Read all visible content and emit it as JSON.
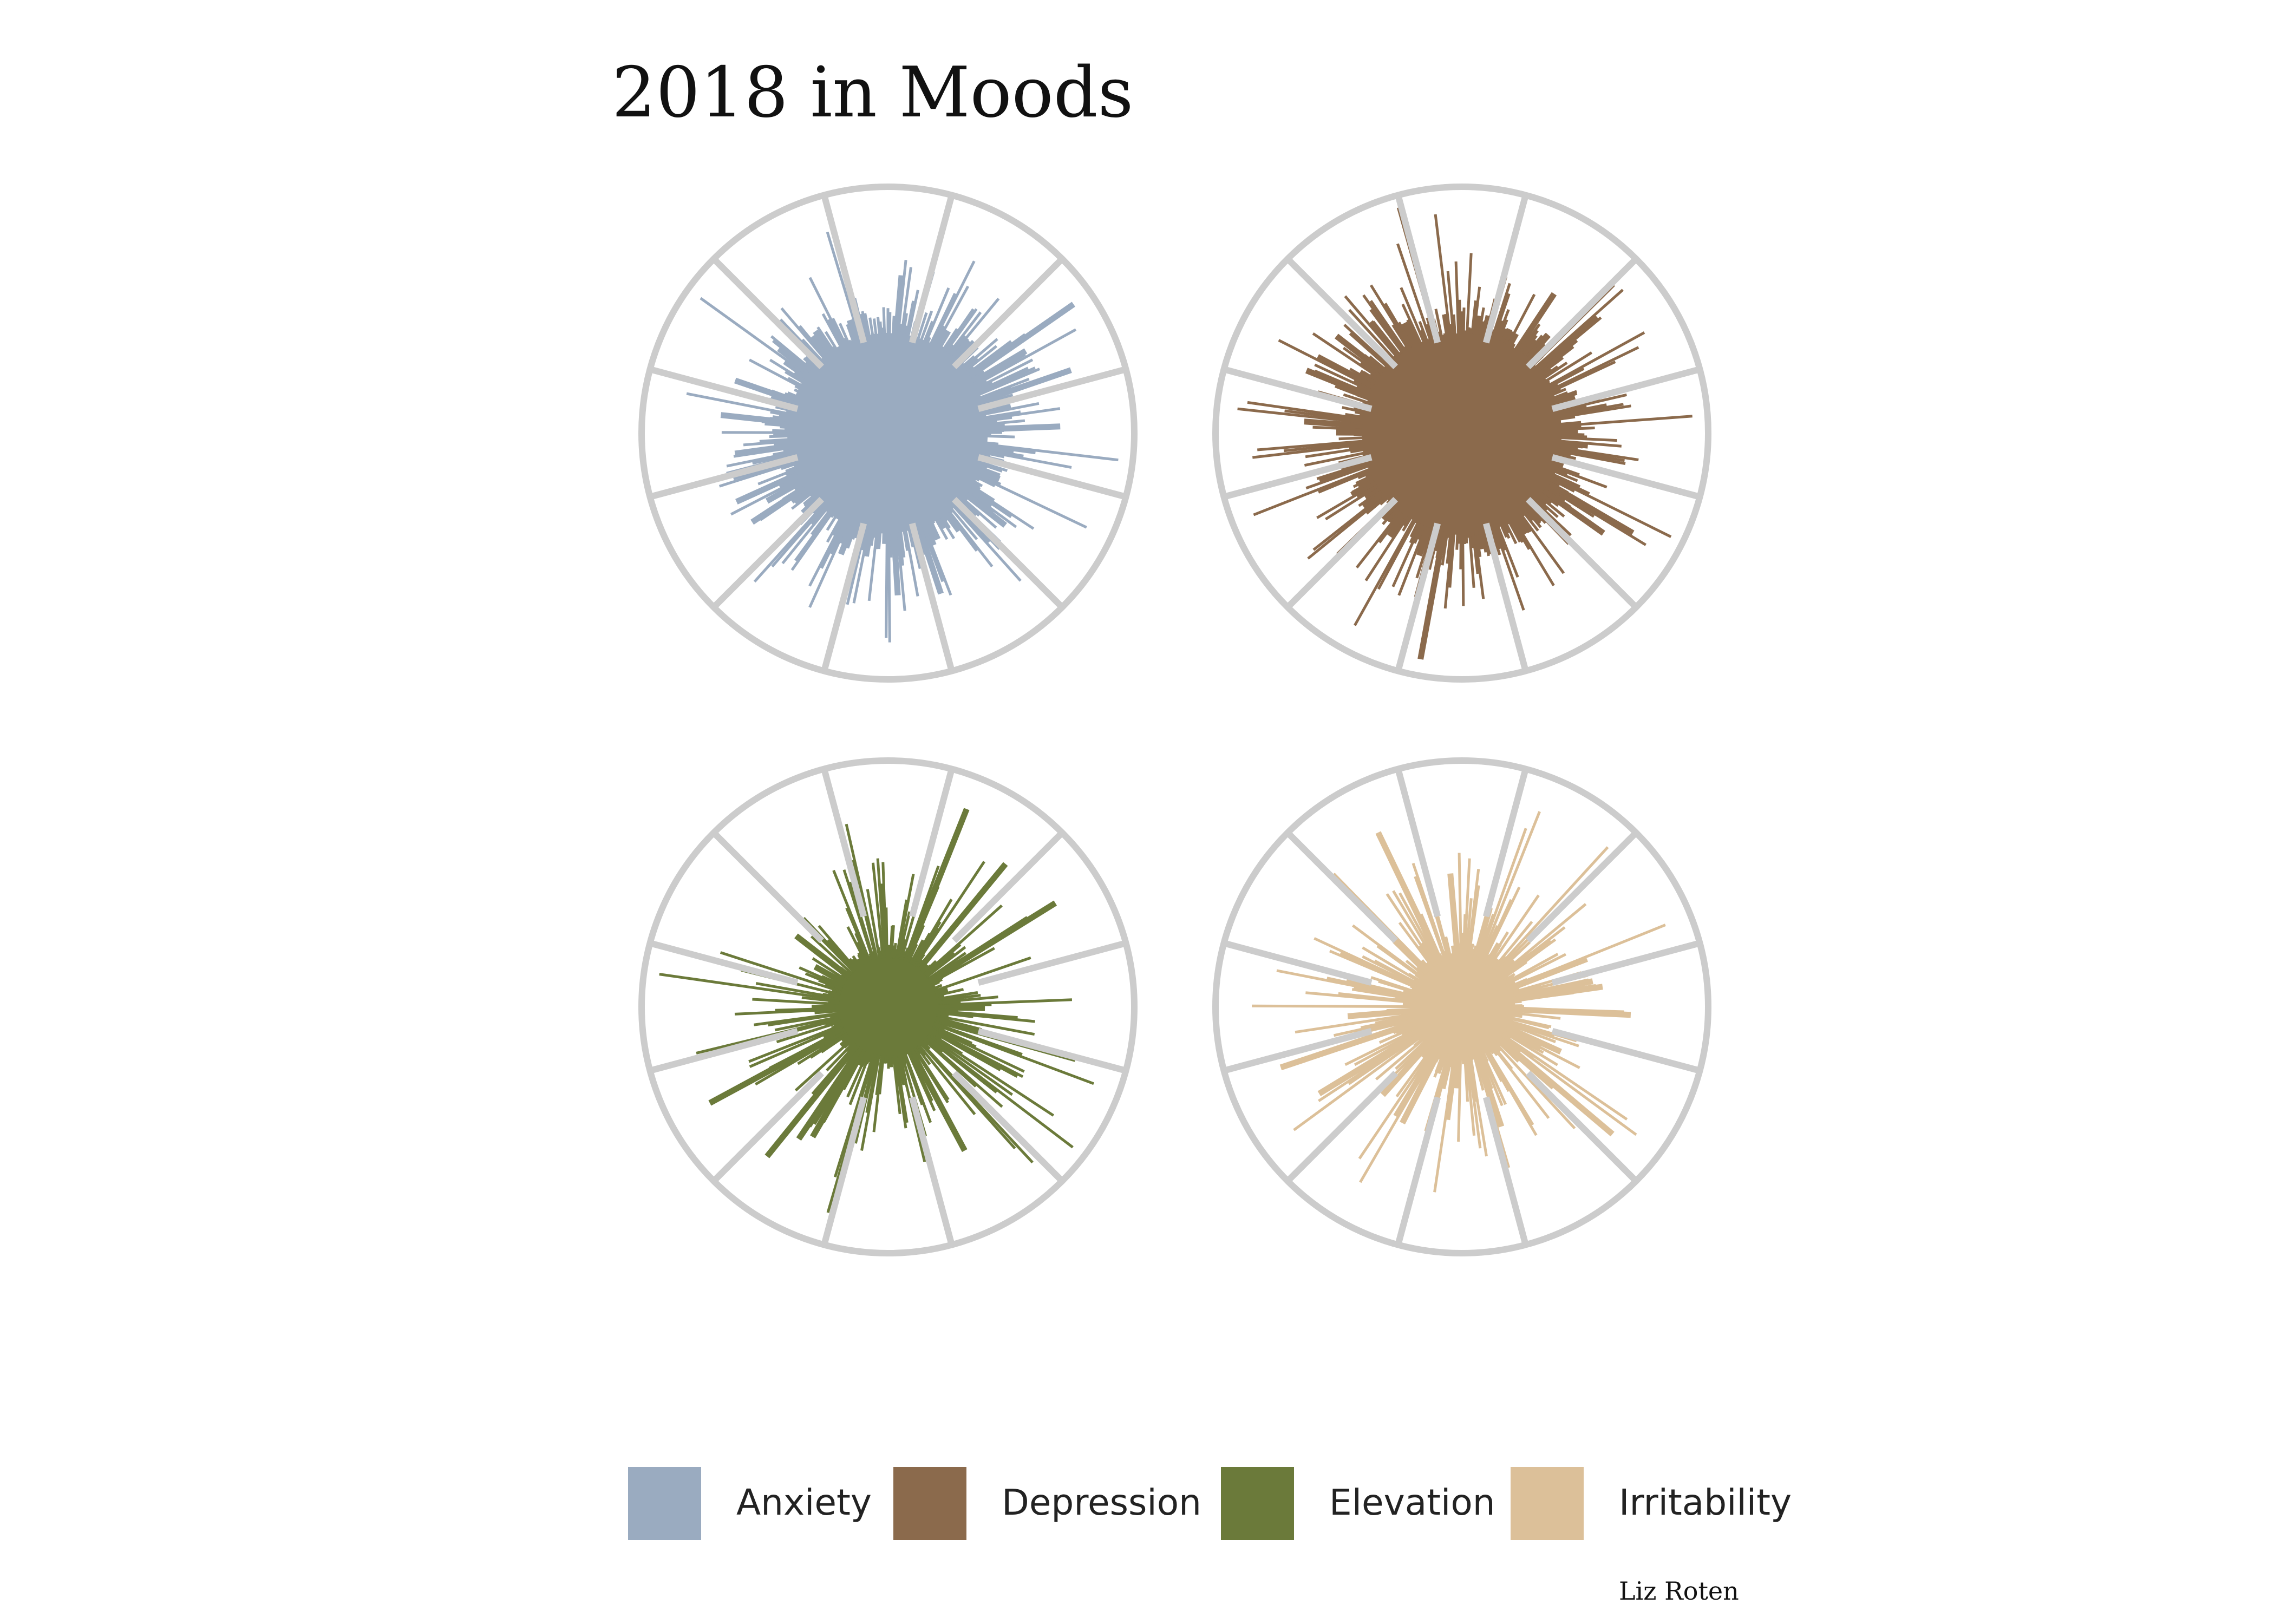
{
  "chart_data": {
    "type": "radial-bar",
    "title": "2018 in Moods",
    "credit": "Liz Roten",
    "months_per_wheel": 12,
    "days_per_wheel": 365,
    "series": [
      {
        "name": "Anxiety",
        "color": "#9aabc0",
        "approx_median_level": 0.45,
        "approx_max_level": 0.95,
        "note_data": "daily radial bar lengths estimated as a relative level 0-1 of the wheel radius"
      },
      {
        "name": "Depression",
        "color": "#8b6a4c",
        "approx_median_level": 0.45,
        "approx_max_level": 0.97
      },
      {
        "name": "Elevation",
        "color": "#6b7a3a",
        "approx_median_level": 0.22,
        "approx_max_level": 0.95
      },
      {
        "name": "Irritability",
        "color": "#dcc099",
        "approx_median_level": 0.22,
        "approx_max_level": 0.9
      }
    ],
    "wheel_outline_color": "#cccccc"
  }
}
